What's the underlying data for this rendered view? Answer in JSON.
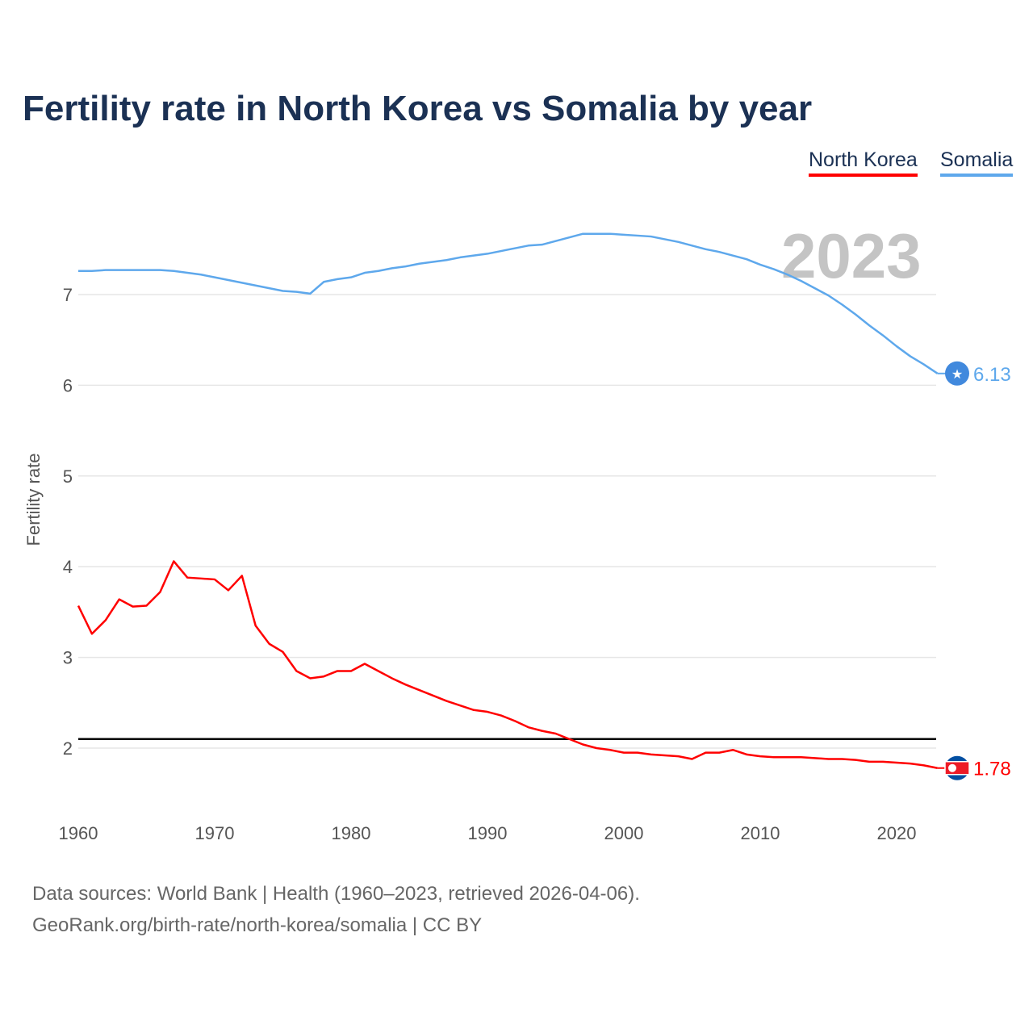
{
  "title": "Fertility rate in North Korea vs Somalia by year",
  "year_label": "2023",
  "source_line1": "Data sources: World Bank | Health (1960–2023, retrieved 2026-04-06).",
  "source_line2": "GeoRank.org/birth-rate/north-korea/somalia | CC BY",
  "chart_data": {
    "type": "line",
    "title": "Fertility rate in North Korea vs Somalia by year",
    "xlabel": "",
    "ylabel": "Fertility rate",
    "xlim": [
      1960,
      2023
    ],
    "yticks": [
      2,
      3,
      4,
      5,
      6,
      7
    ],
    "xticks": [
      1960,
      1970,
      1980,
      1990,
      2000,
      2010,
      2020
    ],
    "reference_line": 2.1,
    "legend_position": "top-right",
    "series": [
      {
        "name": "North Korea",
        "color": "#ff0000",
        "end_label": "1.78",
        "start_year": 1960,
        "values": [
          3.57,
          3.26,
          3.41,
          3.64,
          3.56,
          3.57,
          3.72,
          4.06,
          3.88,
          3.87,
          3.86,
          3.74,
          3.9,
          3.35,
          3.15,
          3.06,
          2.85,
          2.77,
          2.79,
          2.85,
          2.85,
          2.93,
          2.85,
          2.77,
          2.7,
          2.64,
          2.58,
          2.52,
          2.47,
          2.42,
          2.4,
          2.36,
          2.3,
          2.23,
          2.19,
          2.16,
          2.1,
          2.04,
          2.0,
          1.98,
          1.95,
          1.95,
          1.93,
          1.92,
          1.91,
          1.88,
          1.95,
          1.95,
          1.98,
          1.93,
          1.91,
          1.9,
          1.9,
          1.9,
          1.89,
          1.88,
          1.88,
          1.87,
          1.85,
          1.85,
          1.84,
          1.83,
          1.81,
          1.78
        ]
      },
      {
        "name": "Somalia",
        "color": "#5ea8ec",
        "end_label": "6.13",
        "start_year": 1960,
        "values": [
          7.26,
          7.26,
          7.27,
          7.27,
          7.27,
          7.27,
          7.27,
          7.26,
          7.24,
          7.22,
          7.19,
          7.16,
          7.13,
          7.1,
          7.07,
          7.04,
          7.03,
          7.01,
          7.14,
          7.17,
          7.19,
          7.24,
          7.26,
          7.29,
          7.31,
          7.34,
          7.36,
          7.38,
          7.41,
          7.43,
          7.45,
          7.48,
          7.51,
          7.54,
          7.55,
          7.59,
          7.63,
          7.67,
          7.67,
          7.67,
          7.66,
          7.65,
          7.64,
          7.61,
          7.58,
          7.54,
          7.5,
          7.47,
          7.43,
          7.39,
          7.33,
          7.28,
          7.22,
          7.15,
          7.07,
          6.99,
          6.89,
          6.78,
          6.66,
          6.55,
          6.43,
          6.32,
          6.23,
          6.13
        ]
      }
    ]
  }
}
